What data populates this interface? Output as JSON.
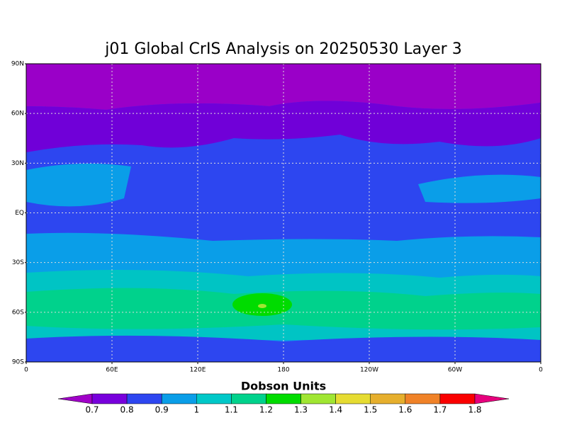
{
  "title": "j01 Global CrIS Analysis on 20250530 Layer 3",
  "y_axis": {
    "labels": [
      "90N",
      "60N",
      "30N",
      "EQ",
      "30S",
      "60S",
      "90S"
    ]
  },
  "x_axis": {
    "labels": [
      "0",
      "60E",
      "120E",
      "180",
      "120W",
      "60W",
      "0"
    ]
  },
  "colorbar": {
    "title": "Dobson Units",
    "ticks": [
      0.7,
      0.8,
      0.9,
      1,
      1.1,
      1.2,
      1.3,
      1.4,
      1.5,
      1.6,
      1.7,
      1.8
    ],
    "colors": [
      "#a000c8",
      "#7800dc",
      "#2d46f0",
      "#0a9ee8",
      "#00c8c8",
      "#00d28c",
      "#00dc00",
      "#a0e632",
      "#e6dc32",
      "#e6af2d",
      "#f08228",
      "#fa0000",
      "#e6007d"
    ]
  }
}
